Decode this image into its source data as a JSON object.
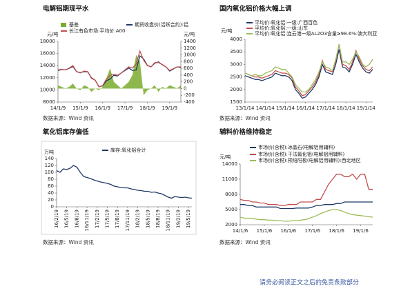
{
  "chart_data": [
    {
      "type": "line",
      "title": "电解铝期现平水",
      "y_label": "元/吨",
      "y2_label": "元/吨",
      "source": "数据来源：Wind 资讯",
      "categories": [
        "14/1/9",
        null,
        null,
        null,
        null,
        null,
        "15/1/9",
        null,
        null,
        null,
        null,
        null,
        "16/1/9",
        null,
        null,
        null,
        null,
        null,
        "17/1/9",
        null,
        null,
        null,
        null,
        null,
        "18/1/9",
        null,
        null,
        null,
        null,
        null,
        "19/1/9",
        null,
        null,
        null
      ],
      "series": [
        {
          "name": "基差",
          "type": "area",
          "axis": "y2",
          "color": "#7aab2e",
          "values": [
            100,
            50,
            0,
            50,
            150,
            0,
            -50,
            100,
            50,
            -100,
            0,
            -50,
            50,
            300,
            600,
            200,
            100,
            0,
            100,
            200,
            400,
            1000,
            800,
            -200,
            -50,
            0,
            100,
            -100,
            50,
            0,
            100,
            50,
            0,
            100
          ]
        },
        {
          "name": "期货收盘价(活跃合约):铝",
          "color": "#1f3864",
          "values": [
            13200,
            13350,
            13300,
            13550,
            13850,
            13000,
            12850,
            13000,
            12950,
            12000,
            11600,
            10550,
            10650,
            11500,
            11800,
            12400,
            12300,
            12800,
            13200,
            13600,
            13200,
            13300,
            15600,
            15100,
            14050,
            13800,
            14400,
            14600,
            14150,
            13800,
            13100,
            13450,
            13800,
            13700
          ]
        },
        {
          "name": "长江有色市场:平均价:A00",
          "color": "#c0504d",
          "values": [
            13300,
            13400,
            13300,
            13600,
            14000,
            13000,
            12800,
            13100,
            13000,
            11900,
            11600,
            10500,
            10700,
            11800,
            12400,
            12600,
            12400,
            12800,
            13300,
            13800,
            13600,
            14300,
            16400,
            14900,
            14000,
            13800,
            14500,
            14500,
            14200,
            13800,
            13200,
            13500,
            13800,
            13800
          ]
        }
      ],
      "ylim": [
        8000,
        18000
      ],
      "yticks": [
        8000,
        10000,
        12000,
        14000,
        16000,
        18000
      ],
      "y2lim": [
        -400,
        1400
      ],
      "y2ticks": [
        -400,
        -200,
        0,
        200,
        400,
        600,
        800,
        1000,
        1200,
        1400
      ]
    },
    {
      "type": "line",
      "title": "国内氧化铝价格大幅上调",
      "y_label": "元/吨",
      "source": "数据来源：Wind 资讯",
      "categories": [
        "13/1/14",
        null,
        null,
        null,
        null,
        null,
        "14/1/14",
        null,
        null,
        null,
        null,
        null,
        "15/1/14",
        null,
        null,
        null,
        null,
        null,
        "16/1/14",
        null,
        null,
        null,
        null,
        null,
        "17/1/14",
        null,
        null,
        null,
        null,
        null,
        "18/1/14",
        null,
        null,
        null,
        null,
        null,
        "19/1/14",
        null,
        null
      ],
      "series": [
        {
          "name": "平均价:氧化铝:一级:广西百色",
          "color": "#1f3864",
          "values": [
            2550,
            2500,
            2450,
            2400,
            2400,
            2350,
            2400,
            2450,
            2500,
            2650,
            2600,
            2550,
            2550,
            2500,
            2350,
            2000,
            1850,
            1650,
            1700,
            1850,
            2000,
            2200,
            2500,
            3000,
            2700,
            2650,
            2600,
            3000,
            3600,
            2900,
            2850,
            2700,
            3000,
            3400,
            3100,
            2850,
            2700,
            2650,
            2800
          ]
        },
        {
          "name": "平均价:氧化铝:一级:山东",
          "color": "#c0504d",
          "values": [
            2650,
            2600,
            2550,
            2500,
            2500,
            2450,
            2500,
            2550,
            2600,
            2750,
            2700,
            2650,
            2650,
            2600,
            2450,
            2100,
            1950,
            1750,
            1800,
            1950,
            2100,
            2300,
            2600,
            3150,
            2800,
            2750,
            2700,
            3150,
            3800,
            3000,
            2950,
            2800,
            3100,
            3550,
            3200,
            2950,
            2800,
            2750,
            2900
          ]
        },
        {
          "name": "平均价:氧化铝:连云港一级AL2O3含量≥98.6%:澳大利亚",
          "color": "#9bbb59",
          "values": [
            2650,
            2600,
            2550,
            2600,
            2550,
            2550,
            2650,
            2700,
            2750,
            2900,
            2850,
            2800,
            2800,
            2650,
            2500,
            2200,
            2050,
            1900,
            1900,
            2000,
            2200,
            2400,
            2700,
            3100,
            2900,
            2850,
            2750,
            3200,
            3800,
            3100,
            3100,
            3000,
            3200,
            3500,
            3300,
            3000,
            2900,
            3000,
            3200
          ]
        }
      ],
      "ylim": [
        1500,
        4000
      ],
      "yticks": [
        1500,
        2000,
        2500,
        3000,
        3500,
        4000
      ]
    },
    {
      "type": "line",
      "title": "氧化铝库存偏低",
      "y_label": "万吨",
      "source": "数据来源：Wind 资讯",
      "categories": [
        "16/2/19",
        null,
        null,
        "16/5/19",
        null,
        null,
        "16/8/19",
        null,
        null,
        "16/11/19",
        null,
        null,
        "17/2/19",
        null,
        null,
        "17/5/19",
        null,
        null,
        "17/8/19",
        null,
        null,
        "17/11/19",
        null,
        null,
        "18/2/19",
        null,
        null,
        "18/5/19",
        null,
        null,
        "18/8/19",
        null,
        null,
        "18/11/19",
        null,
        null,
        "19/2/19",
        null,
        null,
        "19/5/19",
        null
      ],
      "series": [
        {
          "name": "库存:氧化铝合计",
          "color": "#1f3864",
          "values": [
            105,
            100,
            110,
            108,
            112,
            120,
            115,
            100,
            88,
            85,
            82,
            78,
            75,
            72,
            70,
            68,
            65,
            60,
            58,
            56,
            55,
            55,
            52,
            50,
            48,
            47,
            45,
            45,
            42,
            43,
            40,
            38,
            33,
            28,
            25,
            30,
            28,
            27,
            28,
            26,
            25
          ]
        }
      ],
      "ylim": [
        0,
        140
      ],
      "yticks": [
        0,
        20,
        40,
        60,
        80,
        100,
        120,
        140
      ]
    },
    {
      "type": "line",
      "title": "辅料价格维持稳定",
      "y_label": "元/吨",
      "source": "数据来源：Wind 资讯",
      "categories": [
        "14/1/6",
        null,
        null,
        null,
        null,
        null,
        "15/1/6",
        null,
        null,
        null,
        null,
        null,
        "16/1/6",
        null,
        null,
        null,
        null,
        null,
        "17/1/6",
        null,
        null,
        null,
        null,
        null,
        "18/1/6",
        null,
        null,
        null,
        null,
        null,
        "19/1/6",
        null,
        null,
        null
      ],
      "series": [
        {
          "name": "市场价(含税):冰晶石(电解铝用辅料)",
          "color": "#1f3864",
          "values": [
            6000,
            6000,
            5800,
            5800,
            5500,
            5500,
            5500,
            5500,
            5500,
            5500,
            5200,
            5200,
            5200,
            5200,
            5300,
            5300,
            5300,
            5300,
            5500,
            5800,
            5800,
            6000,
            6000,
            6000,
            6200,
            6200,
            6500,
            6500,
            6500,
            6500,
            6500,
            6500,
            6500,
            6500
          ]
        },
        {
          "name": "市场价(含税):干法氟化铝(电解铝用辅料)",
          "color": "#c0504d",
          "values": [
            7000,
            6800,
            6800,
            6500,
            6500,
            6300,
            6300,
            6000,
            6000,
            6000,
            5800,
            5800,
            6000,
            6000,
            6000,
            6500,
            6500,
            6500,
            6500,
            7000,
            7000,
            8500,
            10000,
            11000,
            12000,
            12000,
            11500,
            11500,
            12000,
            11000,
            12000,
            12000,
            9000,
            9000
          ]
        },
        {
          "name": "市场价(含税):预焙阳极(电解铝用辅料):西北地区",
          "color": "#9bbb59",
          "values": [
            3500,
            3300,
            3300,
            3200,
            3100,
            3000,
            3000,
            2900,
            2900,
            2800,
            2800,
            2700,
            2700,
            2800,
            2800,
            2900,
            3000,
            3200,
            3500,
            3800,
            4200,
            4500,
            4800,
            5000,
            5000,
            4800,
            4500,
            4200,
            4000,
            3900,
            3800,
            3700,
            3600,
            3500
          ]
        }
      ],
      "ylim": [
        2000,
        14000
      ],
      "yticks": [
        2000,
        5000,
        8000,
        11000,
        14000
      ]
    }
  ],
  "footer": "请务必阅读正文之后的免责条款部分"
}
